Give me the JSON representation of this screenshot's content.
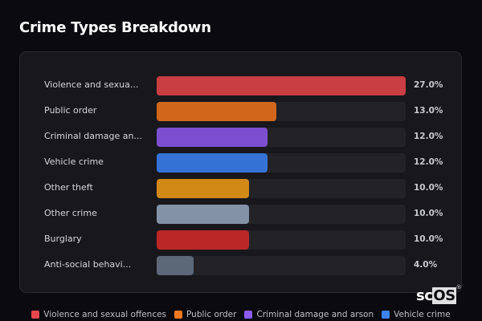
{
  "header": {
    "title": "Crime Types Breakdown"
  },
  "chart_data": {
    "type": "bar",
    "orientation": "horizontal",
    "title": "Crime Types Breakdown",
    "categories": [
      "Violence and sexual offences",
      "Public order",
      "Criminal damage and arson",
      "Vehicle crime",
      "Other theft",
      "Other crime",
      "Burglary",
      "Anti-social behaviour"
    ],
    "display_labels": [
      "Violence and sexua...",
      "Public order",
      "Criminal damage an...",
      "Vehicle crime",
      "Other theft",
      "Other crime",
      "Burglary",
      "Anti-social behavi..."
    ],
    "values": [
      27.0,
      13.0,
      12.0,
      12.0,
      10.0,
      10.0,
      10.0,
      4.0
    ],
    "value_labels": [
      "27.0%",
      "13.0%",
      "12.0%",
      "12.0%",
      "10.0%",
      "10.0%",
      "10.0%",
      "4.0%"
    ],
    "colors": [
      "#c93e42",
      "#d2671c",
      "#7b4fcf",
      "#3572d6",
      "#d38915",
      "#8392a6",
      "#bb2727",
      "#5c6878"
    ],
    "xlabel": "",
    "ylabel": "",
    "xlim": [
      0,
      27
    ],
    "grid": false,
    "legend_position": "bottom"
  },
  "legend": [
    {
      "label": "Violence and sexual offences",
      "color": "#e5474d"
    },
    {
      "label": "Public order",
      "color": "#f07a22"
    },
    {
      "label": "Criminal damage and arson",
      "color": "#8b5cf0"
    },
    {
      "label": "Vehicle crime",
      "color": "#3d82f0"
    }
  ],
  "watermark": {
    "sc": "sc",
    "os": "OS",
    "mark": "®"
  }
}
